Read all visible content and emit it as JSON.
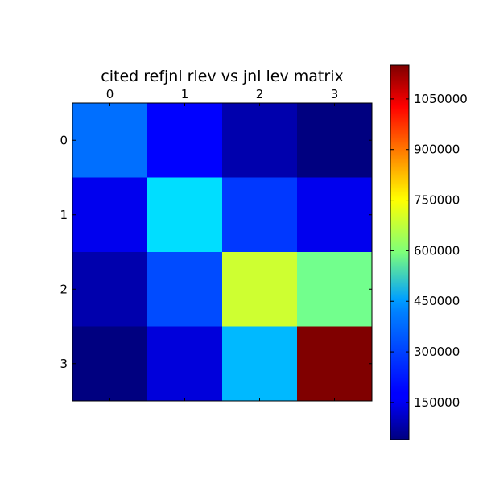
{
  "chart_data": {
    "type": "heatmap",
    "title": "cited refjnl rlev vs jnl lev matrix",
    "colormap": "jet",
    "x_labels": [
      "0",
      "1",
      "2",
      "3"
    ],
    "y_labels": [
      "0",
      "1",
      "2",
      "3"
    ],
    "x_ticks_position": "top",
    "values": [
      [
        300000,
        180000,
        90000,
        40000
      ],
      [
        160000,
        420000,
        240000,
        160000
      ],
      [
        90000,
        260000,
        680000,
        580000
      ],
      [
        40000,
        140000,
        380000,
        1150000
      ]
    ],
    "colorbar": {
      "min": 40000,
      "max": 1150000,
      "ticks": [
        150000,
        300000,
        450000,
        600000,
        750000,
        900000,
        1050000
      ],
      "tick_labels": [
        "150000",
        "300000",
        "450000",
        "600000",
        "750000",
        "900000",
        "1050000"
      ],
      "placement": "right"
    },
    "grid": false
  }
}
